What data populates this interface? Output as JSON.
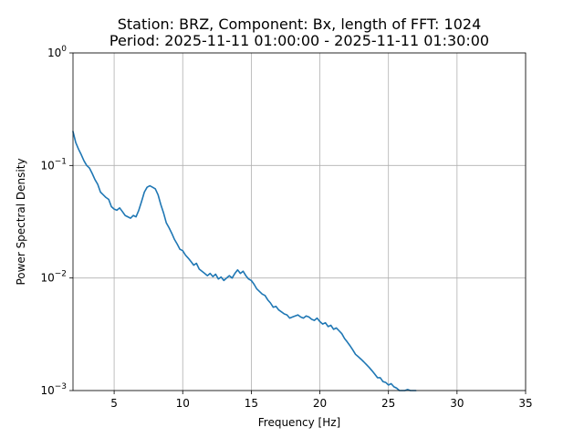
{
  "chart_data": {
    "type": "line",
    "title": "Station: BRZ, Component: Bx, length of FFT: 1024",
    "subtitle": "Period: 2025-11-11 01:00:00 - 2025-11-11 01:30:00",
    "xlabel": "Frequency [Hz]",
    "ylabel": "Power Spectral Density",
    "xlim": [
      2,
      35
    ],
    "ylim": [
      0.001,
      1
    ],
    "yscale": "log",
    "grid": true,
    "line_color": "#1f77b4",
    "x_ticks": [
      {
        "value": 5,
        "label": "5"
      },
      {
        "value": 10,
        "label": "10"
      },
      {
        "value": 15,
        "label": "15"
      },
      {
        "value": 20,
        "label": "20"
      },
      {
        "value": 25,
        "label": "25"
      },
      {
        "value": 30,
        "label": "30"
      },
      {
        "value": 35,
        "label": "35"
      }
    ],
    "y_ticks": [
      {
        "value": 0.001,
        "base": "10",
        "exp": "−3"
      },
      {
        "value": 0.01,
        "base": "10",
        "exp": "−2"
      },
      {
        "value": 0.1,
        "base": "10",
        "exp": "−1"
      },
      {
        "value": 1,
        "base": "10",
        "exp": "0"
      }
    ],
    "series": [
      {
        "x": [
          2.0,
          2.2,
          2.4,
          2.6,
          2.8,
          3.0,
          3.2,
          3.4,
          3.6,
          3.8,
          4.0,
          4.2,
          4.4,
          4.6,
          4.8,
          5.0,
          5.2,
          5.4,
          5.6,
          5.8,
          6.0,
          6.2,
          6.4,
          6.6,
          6.8,
          7.0,
          7.2,
          7.4,
          7.6,
          7.8,
          8.0,
          8.2,
          8.4,
          8.6,
          8.8,
          9.0,
          9.2,
          9.4,
          9.6,
          9.8,
          10.0,
          10.2,
          10.4,
          10.6,
          10.8,
          11.0,
          11.2,
          11.4,
          11.6,
          11.8,
          12.0,
          12.2,
          12.4,
          12.6,
          12.8,
          13.0,
          13.2,
          13.4,
          13.6,
          13.8,
          14.0,
          14.2,
          14.4,
          14.6,
          14.8,
          15.0,
          15.2,
          15.4,
          15.6,
          15.8,
          16.0,
          16.2,
          16.4,
          16.6,
          16.8,
          17.0,
          17.2,
          17.4,
          17.6,
          17.8,
          18.0,
          18.2,
          18.4,
          18.6,
          18.8,
          19.0,
          19.2,
          19.4,
          19.6,
          19.8,
          20.0,
          20.2,
          20.4,
          20.6,
          20.8,
          21.0,
          21.2,
          21.4,
          21.6,
          21.8,
          22.0,
          22.2,
          22.4,
          22.6,
          22.8,
          23.0,
          23.2,
          23.4,
          23.6,
          23.8,
          24.0,
          24.2,
          24.4,
          24.6,
          24.8,
          25.0,
          25.2,
          25.4,
          25.6,
          25.8,
          26.0,
          26.2,
          26.4,
          26.6,
          26.8,
          27.0
        ],
        "y": [
          0.2,
          0.16,
          0.14,
          0.125,
          0.11,
          0.1,
          0.095,
          0.085,
          0.075,
          0.068,
          0.058,
          0.055,
          0.052,
          0.05,
          0.043,
          0.041,
          0.04,
          0.042,
          0.039,
          0.036,
          0.035,
          0.034,
          0.036,
          0.035,
          0.04,
          0.048,
          0.058,
          0.064,
          0.066,
          0.064,
          0.062,
          0.055,
          0.045,
          0.038,
          0.031,
          0.028,
          0.025,
          0.022,
          0.02,
          0.018,
          0.0175,
          0.016,
          0.015,
          0.014,
          0.013,
          0.0135,
          0.012,
          0.0115,
          0.011,
          0.0105,
          0.011,
          0.0103,
          0.0108,
          0.0098,
          0.0102,
          0.0095,
          0.01,
          0.0105,
          0.01,
          0.011,
          0.0118,
          0.011,
          0.0115,
          0.0105,
          0.0098,
          0.0095,
          0.0088,
          0.008,
          0.0076,
          0.0072,
          0.007,
          0.0064,
          0.006,
          0.0055,
          0.0056,
          0.0052,
          0.005,
          0.0048,
          0.0047,
          0.0044,
          0.0045,
          0.0046,
          0.0047,
          0.0045,
          0.0044,
          0.0046,
          0.0045,
          0.0043,
          0.0042,
          0.0044,
          0.0041,
          0.0039,
          0.004,
          0.0037,
          0.0038,
          0.0035,
          0.0036,
          0.0034,
          0.0032,
          0.0029,
          0.0027,
          0.0025,
          0.0023,
          0.0021,
          0.002,
          0.0019,
          0.0018,
          0.0017,
          0.0016,
          0.0015,
          0.0014,
          0.0013,
          0.0013,
          0.0012,
          0.00118,
          0.00112,
          0.00115,
          0.00108,
          0.00105,
          0.001,
          0.00098,
          0.001,
          0.00102,
          0.00098,
          0.00097,
          0.00096
        ]
      }
    ]
  }
}
